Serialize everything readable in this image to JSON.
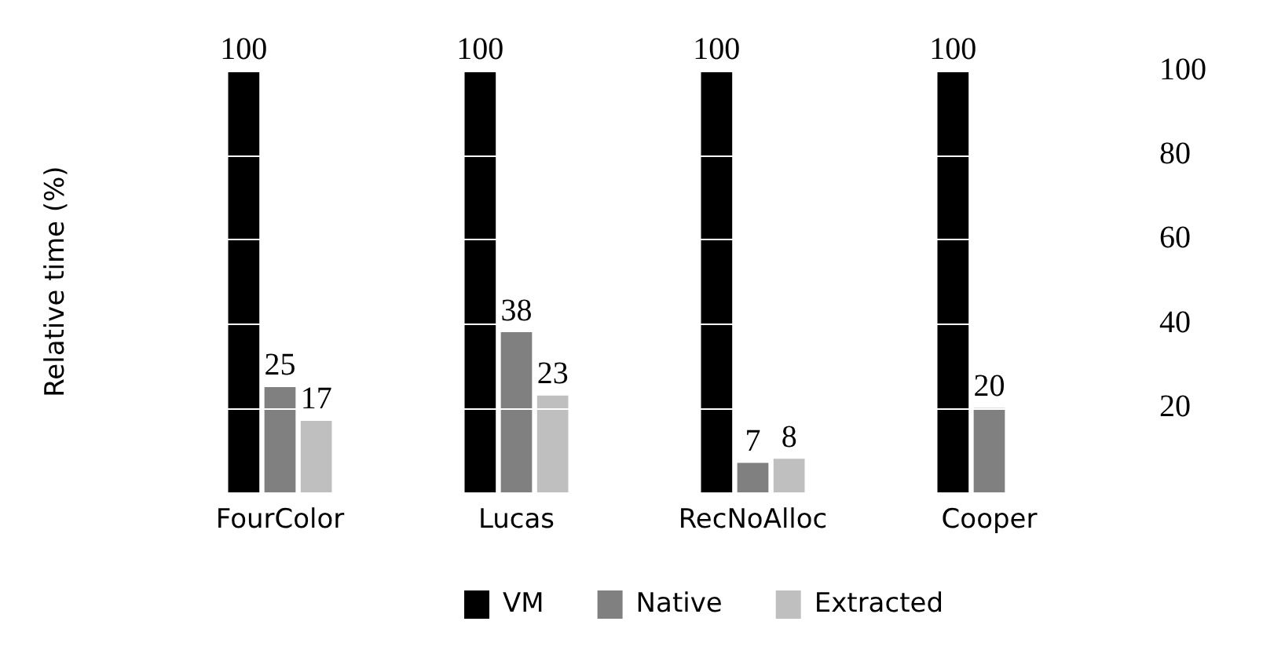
{
  "chart_data": {
    "type": "bar",
    "ylabel": "Relative time (%)",
    "categories": [
      "FourColor",
      "Lucas",
      "RecNoAlloc",
      "Cooper"
    ],
    "series": [
      {
        "name": "VM",
        "color": "#000000",
        "values": [
          100,
          100,
          100,
          100
        ]
      },
      {
        "name": "Native",
        "color": "#808080",
        "values": [
          25,
          38,
          7,
          20
        ]
      },
      {
        "name": "Extracted",
        "color": "#bfbfbf",
        "values": [
          17,
          23,
          8,
          null
        ]
      }
    ],
    "ylim": [
      0,
      100
    ],
    "yticks": [
      20,
      40,
      60,
      80,
      100
    ],
    "grid": "y",
    "legend": "bottom",
    "data_labels": true
  }
}
